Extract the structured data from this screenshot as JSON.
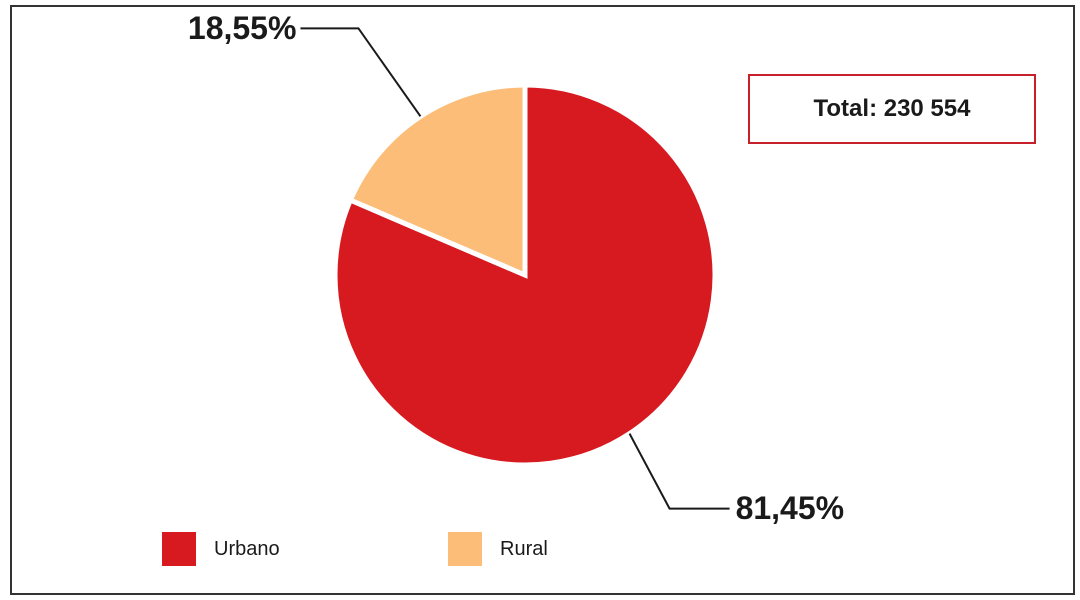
{
  "chart_data": {
    "type": "pie",
    "categories": [
      "Urbano",
      "Rural"
    ],
    "values": [
      81.45,
      18.55
    ],
    "value_labels": [
      "81,45%",
      "18,55%"
    ],
    "colors": [
      "#d71920",
      "#fbbd78"
    ],
    "title": "",
    "legend": {
      "placement": "bottom",
      "entries": [
        "Urbano",
        "Rural"
      ]
    },
    "annotation": "Total: 230 554",
    "start_angle_deg": 0,
    "direction": "clockwise"
  }
}
